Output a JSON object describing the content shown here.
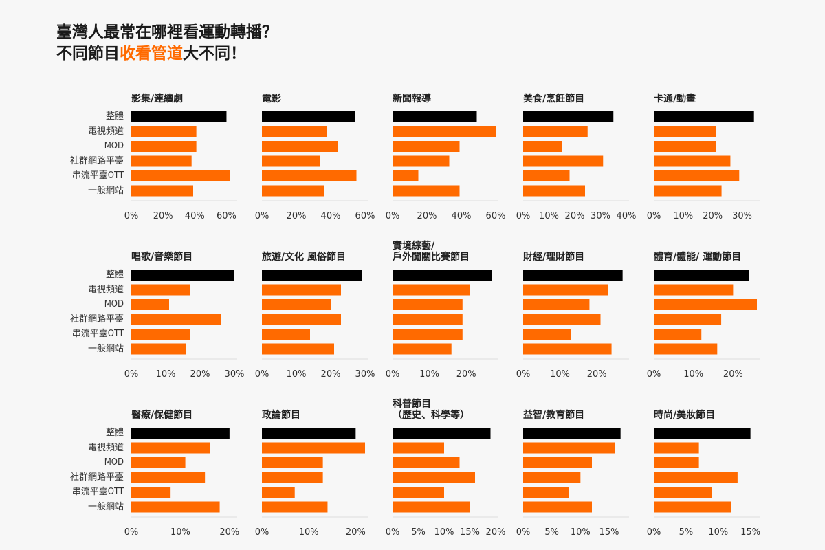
{
  "title": {
    "line1": "臺灣人最常在哪裡看運動轉播？",
    "line2_prefix": "不同節目",
    "line2_accent": "收看管道",
    "line2_suffix": "大不同！"
  },
  "colors": {
    "accent": "#ff6a00",
    "overall": "#000000",
    "bar": "#ff6a00",
    "axis": "#dddddd",
    "tick_text": "#333333"
  },
  "categories": [
    "整體",
    "電視頻道",
    "MOD",
    "社群網路平臺",
    "串流平臺OTT",
    "一般網站"
  ],
  "chart_data": [
    {
      "type": "bar",
      "title": "影集/連續劇",
      "categories": [
        "整體",
        "電視頻道",
        "MOD",
        "社群網路平臺",
        "串流平臺OTT",
        "一般網站"
      ],
      "values": [
        60,
        41,
        41,
        38,
        62,
        39
      ],
      "xlim": [
        0,
        65
      ],
      "xticks": [
        0,
        20,
        40,
        60
      ],
      "xtick_labels": [
        "0%",
        "20%",
        "40%",
        "60%"
      ]
    },
    {
      "type": "bar",
      "title": "電影",
      "categories": [
        "整體",
        "電視頻道",
        "MOD",
        "社群網路平臺",
        "串流平臺OTT",
        "一般網站"
      ],
      "values": [
        54,
        38,
        44,
        34,
        55,
        36
      ],
      "xlim": [
        0,
        60
      ],
      "xticks": [
        0,
        20,
        40,
        60
      ],
      "xtick_labels": [
        "0%",
        "20%",
        "40%",
        "60%"
      ]
    },
    {
      "type": "bar",
      "title": "新聞報導",
      "categories": [
        "整體",
        "電視頻道",
        "MOD",
        "社群網路平臺",
        "串流平臺OTT",
        "一般網站"
      ],
      "values": [
        49,
        60,
        39,
        33,
        15,
        39
      ],
      "xlim": [
        0,
        60
      ],
      "xticks": [
        0,
        20,
        40,
        60
      ],
      "xtick_labels": [
        "0%",
        "20%",
        "40%",
        "60%"
      ]
    },
    {
      "type": "bar",
      "title": "美食/烹飪節目",
      "categories": [
        "整體",
        "電視頻道",
        "MOD",
        "社群網路平臺",
        "串流平臺OTT",
        "一般網站"
      ],
      "values": [
        35,
        25,
        15,
        31,
        18,
        24
      ],
      "xlim": [
        0,
        40
      ],
      "xticks": [
        0,
        10,
        20,
        30,
        40
      ],
      "xtick_labels": [
        "0%",
        "10%",
        "20%",
        "30%",
        "40%"
      ]
    },
    {
      "type": "bar",
      "title": "卡通/動畫",
      "categories": [
        "整體",
        "電視頻道",
        "MOD",
        "社群網路平臺",
        "串流平臺OTT",
        "一般網站"
      ],
      "values": [
        34,
        21,
        21,
        26,
        29,
        23
      ],
      "xlim": [
        0,
        35
      ],
      "xticks": [
        0,
        10,
        20,
        30
      ],
      "xtick_labels": [
        "0%",
        "10%",
        "20%",
        "30%"
      ]
    },
    {
      "type": "bar",
      "title": "唱歌/音樂節目",
      "categories": [
        "整體",
        "電視頻道",
        "MOD",
        "社群網路平臺",
        "串流平臺OTT",
        "一般網站"
      ],
      "values": [
        30,
        17,
        11,
        26,
        17,
        16
      ],
      "xlim": [
        0,
        30
      ],
      "xticks": [
        0,
        10,
        20,
        30
      ],
      "xtick_labels": [
        "0%",
        "10%",
        "20%",
        "30%"
      ]
    },
    {
      "type": "bar",
      "title": "旅遊/文化 風俗節目",
      "categories": [
        "整體",
        "電視頻道",
        "MOD",
        "社群網路平臺",
        "串流平臺OTT",
        "一般網站"
      ],
      "values": [
        29,
        23,
        20,
        23,
        14,
        21
      ],
      "xlim": [
        0,
        30
      ],
      "xticks": [
        0,
        10,
        20,
        30
      ],
      "xtick_labels": [
        "0%",
        "10%",
        "20%",
        "30%"
      ]
    },
    {
      "type": "bar",
      "title": "實境綜藝/\n戶外闖關比賽節目",
      "categories": [
        "整體",
        "電視頻道",
        "MOD",
        "社群網路平臺",
        "串流平臺OTT",
        "一般網站"
      ],
      "values": [
        27,
        21,
        19,
        19,
        19,
        16
      ],
      "xlim": [
        0,
        28
      ],
      "xticks": [
        0,
        10,
        20
      ],
      "xtick_labels": [
        "0%",
        "10%",
        "20%"
      ]
    },
    {
      "type": "bar",
      "title": "財經/理財節目",
      "categories": [
        "整體",
        "電視頻道",
        "MOD",
        "社群網路平臺",
        "串流平臺OTT",
        "一般網站"
      ],
      "values": [
        27,
        23,
        18,
        21,
        13,
        24
      ],
      "xlim": [
        0,
        28
      ],
      "xticks": [
        0,
        10,
        20
      ],
      "xtick_labels": [
        "0%",
        "10%",
        "20%"
      ]
    },
    {
      "type": "bar",
      "title": "體育/體能/ 運動節目",
      "categories": [
        "整體",
        "電視頻道",
        "MOD",
        "社群網路平臺",
        "串流平臺OTT",
        "一般網站"
      ],
      "values": [
        24,
        20,
        26,
        17,
        12,
        16
      ],
      "xlim": [
        0,
        26
      ],
      "xticks": [
        0,
        10,
        20
      ],
      "xtick_labels": [
        "0%",
        "10%",
        "20%"
      ]
    },
    {
      "type": "bar",
      "title": "醫療/保健節目",
      "categories": [
        "整體",
        "電視頻道",
        "MOD",
        "社群網路平臺",
        "串流平臺OTT",
        "一般網站"
      ],
      "values": [
        20,
        16,
        11,
        15,
        8,
        18
      ],
      "xlim": [
        0,
        21
      ],
      "xticks": [
        0,
        10,
        20
      ],
      "xtick_labels": [
        "0%",
        "10%",
        "20%"
      ]
    },
    {
      "type": "bar",
      "title": "政論節目",
      "categories": [
        "整體",
        "電視頻道",
        "MOD",
        "社群網路平臺",
        "串流平臺OTT",
        "一般網站"
      ],
      "values": [
        20,
        22,
        13,
        13,
        7,
        14
      ],
      "xlim": [
        0,
        22
      ],
      "xticks": [
        0,
        10,
        20
      ],
      "xtick_labels": [
        "0%",
        "10%",
        "20%"
      ]
    },
    {
      "type": "bar",
      "title": "科普節目\n（歷史、科學等）",
      "categories": [
        "整體",
        "電視頻道",
        "MOD",
        "社群網路平臺",
        "串流平臺OTT",
        "一般網站"
      ],
      "values": [
        19,
        10,
        13,
        16,
        10,
        15
      ],
      "xlim": [
        0,
        20
      ],
      "xticks": [
        0,
        5,
        10,
        15,
        20
      ],
      "xtick_labels": [
        "0%",
        "5%",
        "10%",
        "15%",
        "20%"
      ]
    },
    {
      "type": "bar",
      "title": "益智/教育節目",
      "categories": [
        "整體",
        "電視頻道",
        "MOD",
        "社群網路平臺",
        "串流平臺OTT",
        "一般網站"
      ],
      "values": [
        17,
        16,
        12,
        10,
        8,
        12
      ],
      "xlim": [
        0,
        18
      ],
      "xticks": [
        0,
        5,
        10,
        15
      ],
      "xtick_labels": [
        "0%",
        "5%",
        "10%",
        "15%"
      ]
    },
    {
      "type": "bar",
      "title": "時尚/美妝節目",
      "categories": [
        "整體",
        "電視頻道",
        "MOD",
        "社群網路平臺",
        "串流平臺OTT",
        "一般網站"
      ],
      "values": [
        15,
        7,
        7,
        13,
        9,
        12
      ],
      "xlim": [
        0,
        16
      ],
      "xticks": [
        0,
        5,
        10,
        15
      ],
      "xtick_labels": [
        "0%",
        "5%",
        "10%",
        "15%"
      ]
    }
  ]
}
